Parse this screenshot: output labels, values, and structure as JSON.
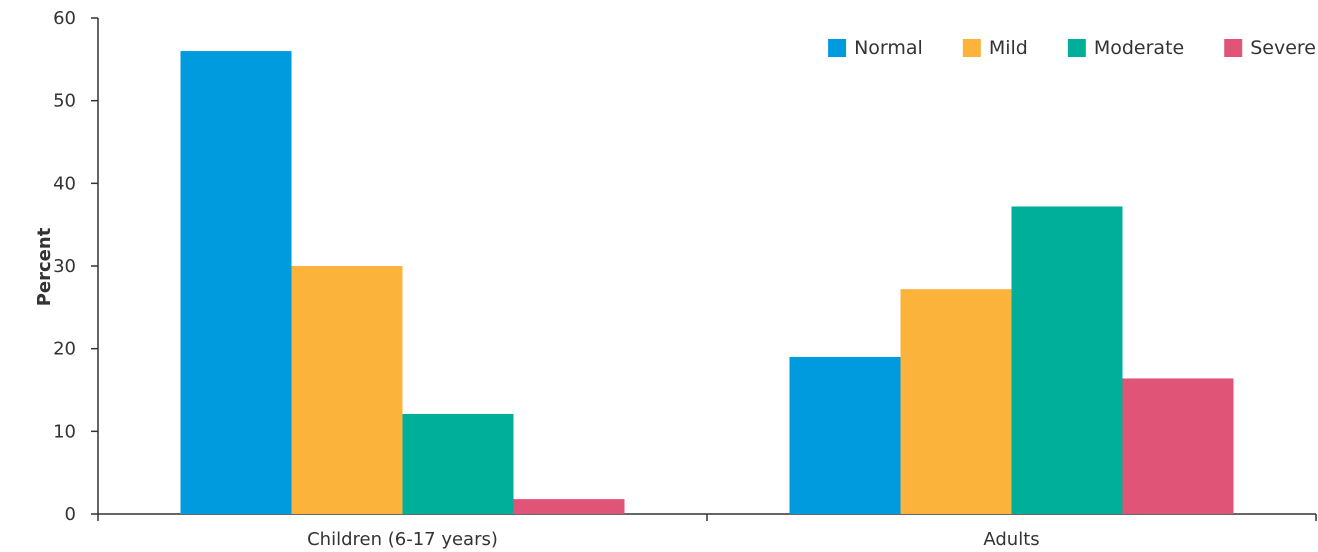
{
  "chart_data": {
    "type": "bar",
    "ylabel": "Percent",
    "xlabel": "",
    "ylim": [
      0,
      60
    ],
    "yticks": [
      0,
      10,
      20,
      30,
      40,
      50,
      60
    ],
    "categories": [
      "Children (6-17 years)",
      "Adults"
    ],
    "series": [
      {
        "name": "Normal",
        "color": "#009ADE",
        "values": [
          56,
          19
        ]
      },
      {
        "name": "Mild",
        "color": "#FBB33C",
        "values": [
          30,
          27.2
        ]
      },
      {
        "name": "Moderate",
        "color": "#00AF9A",
        "values": [
          12.1,
          37.2
        ]
      },
      {
        "name": "Severe",
        "color": "#E05577",
        "values": [
          1.8,
          16.4
        ]
      }
    ],
    "legend_position": "top-right",
    "grid": false
  }
}
